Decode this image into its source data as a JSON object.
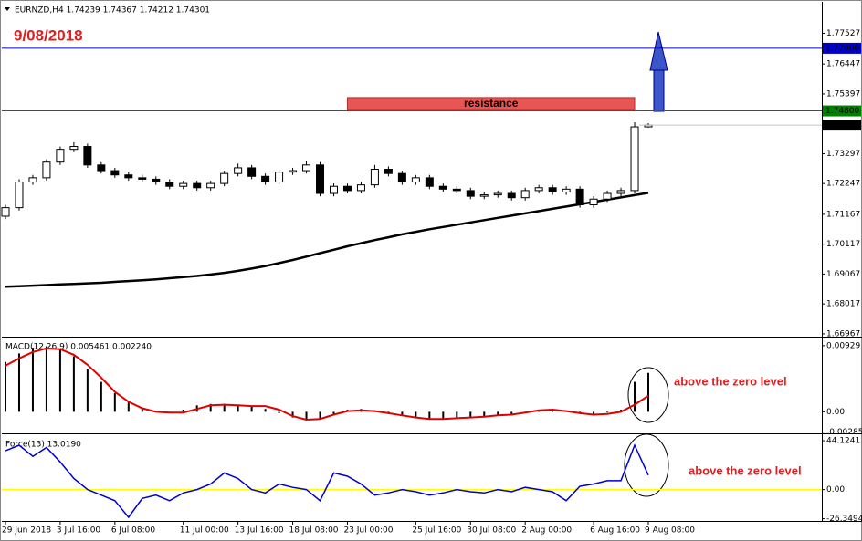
{
  "chart_data": [
    {
      "type": "candlestick",
      "title": "EURNZD,H4  1.74239 1.74367 1.74212 1.74301",
      "annotation": "9/08/2018",
      "categories": [
        "29 Jun 2018",
        null,
        null,
        null,
        "3 Jul 16:00",
        null,
        null,
        null,
        "6 Jul 08:00",
        null,
        null,
        null,
        null,
        "11 Jul 00:00",
        null,
        null,
        null,
        "13 Jul 16:00",
        null,
        null,
        null,
        "18 Jul 08:00",
        null,
        null,
        null,
        "23 Jul 00:00",
        null,
        null,
        null,
        null,
        "25 Jul 16:00",
        null,
        null,
        null,
        "30 Jul 08:00",
        null,
        null,
        null,
        "2 Aug 00:00",
        null,
        null,
        null,
        null,
        "6 Aug 16:00",
        null,
        null,
        null,
        "9 Aug 08:00"
      ],
      "open": [
        1.711,
        1.714,
        1.723,
        1.7245,
        1.73,
        1.7345,
        1.7355,
        1.729,
        1.727,
        1.7255,
        1.7245,
        1.724,
        1.723,
        1.7215,
        1.7225,
        1.721,
        1.7225,
        1.726,
        1.728,
        1.725,
        1.723,
        1.7265,
        1.727,
        1.729,
        1.719,
        1.7215,
        1.72,
        1.722,
        1.7275,
        1.726,
        1.723,
        1.7245,
        1.7215,
        1.7205,
        1.72,
        1.718,
        1.7185,
        1.719,
        1.7175,
        1.72,
        1.721,
        1.7195,
        1.7205,
        1.715,
        1.717,
        1.719,
        1.72,
        1.74239
      ],
      "high": [
        1.715,
        1.724,
        1.7255,
        1.731,
        1.7355,
        1.737,
        1.7365,
        1.73,
        1.728,
        1.7265,
        1.7255,
        1.725,
        1.724,
        1.7235,
        1.7235,
        1.7235,
        1.727,
        1.7295,
        1.729,
        1.726,
        1.7275,
        1.728,
        1.7305,
        1.73,
        1.7225,
        1.7225,
        1.723,
        1.729,
        1.7285,
        1.727,
        1.7255,
        1.7255,
        1.7225,
        1.7215,
        1.721,
        1.7195,
        1.72,
        1.72,
        1.721,
        1.722,
        1.722,
        1.7215,
        1.7215,
        1.718,
        1.72,
        1.721,
        1.744,
        1.74367
      ],
      "low": [
        1.71,
        1.713,
        1.722,
        1.7235,
        1.729,
        1.7335,
        1.728,
        1.726,
        1.7245,
        1.7235,
        1.723,
        1.722,
        1.7205,
        1.7205,
        1.72,
        1.72,
        1.7215,
        1.725,
        1.724,
        1.722,
        1.722,
        1.7255,
        1.726,
        1.718,
        1.718,
        1.719,
        1.719,
        1.721,
        1.725,
        1.722,
        1.722,
        1.7205,
        1.7195,
        1.719,
        1.717,
        1.717,
        1.7175,
        1.7165,
        1.7165,
        1.719,
        1.7185,
        1.7185,
        1.714,
        1.714,
        1.716,
        1.718,
        1.719,
        1.74212
      ],
      "close": [
        1.714,
        1.723,
        1.7245,
        1.73,
        1.7345,
        1.7355,
        1.729,
        1.727,
        1.7255,
        1.7245,
        1.724,
        1.723,
        1.7215,
        1.7225,
        1.721,
        1.7225,
        1.726,
        1.728,
        1.725,
        1.723,
        1.7265,
        1.727,
        1.729,
        1.719,
        1.7215,
        1.72,
        1.722,
        1.7275,
        1.726,
        1.723,
        1.7245,
        1.7215,
        1.7205,
        1.72,
        1.718,
        1.7185,
        1.719,
        1.7175,
        1.72,
        1.721,
        1.7195,
        1.7205,
        1.715,
        1.717,
        1.719,
        1.72,
        1.74239,
        1.74301
      ],
      "up_color": "#ffffff",
      "down_color": "#000000",
      "lines": [
        {
          "color": "#ffffff",
          "values": [
            1.71,
            1.713,
            1.717,
            1.721,
            1.725,
            1.7285,
            1.73,
            1.7295,
            1.7285,
            1.727,
            1.726,
            1.725,
            1.724,
            1.7232,
            1.7225,
            1.7222,
            1.723,
            1.7245,
            1.7252,
            1.7248,
            1.725,
            1.7255,
            1.7265,
            1.724,
            1.723,
            1.722,
            1.7218,
            1.7235,
            1.7245,
            1.724,
            1.7238,
            1.723,
            1.722,
            1.7212,
            1.72,
            1.7192,
            1.719,
            1.7185,
            1.7188,
            1.7195,
            1.7198,
            1.72,
            1.7185,
            1.718,
            1.7182,
            1.7188,
            1.72,
            1.7205
          ]
        },
        {
          "color": "#000000",
          "values": [
            1.6862,
            1.6864,
            1.6866,
            1.6868,
            1.687,
            1.6872,
            1.6874,
            1.6876,
            1.6879,
            1.6882,
            1.6885,
            1.6888,
            1.6892,
            1.6896,
            1.69,
            1.6905,
            1.6911,
            1.6918,
            1.6926,
            1.6935,
            1.6945,
            1.6956,
            1.6968,
            1.698,
            1.6992,
            1.7004,
            1.7015,
            1.7026,
            1.7036,
            1.7046,
            1.7055,
            1.7064,
            1.7072,
            1.708,
            1.7088,
            1.7096,
            1.7104,
            1.7112,
            1.712,
            1.7128,
            1.7136,
            1.7144,
            1.7152,
            1.716,
            1.7168,
            1.7176,
            1.7184,
            1.7192
          ]
        }
      ],
      "ylim": [
        1.669,
        1.786
      ],
      "yticks": [
        1.66967,
        1.68017,
        1.69067,
        1.70117,
        1.71167,
        1.72247,
        1.73297,
        1.74301,
        1.75397,
        1.76447,
        1.77527
      ],
      "hlines": [
        {
          "value": 1.77,
          "label": "1.77000",
          "color": "#0000cc"
        },
        {
          "value": 1.748,
          "label": "1.74800",
          "color": "#008000"
        }
      ],
      "zone": {
        "label": "resistance",
        "from": 1.7482,
        "to": 1.7527,
        "start": 25,
        "end": 46,
        "color": "#e85555"
      }
    },
    {
      "type": "macd",
      "title": "MACD(12,26,9) 0.005461 0.002240",
      "annotation": "above the zero level",
      "histogram": [
        0.007,
        0.0082,
        0.009,
        0.0092,
        0.0088,
        0.0078,
        0.006,
        0.0042,
        0.0026,
        0.0014,
        0.0006,
        0.0001,
        -0.0002,
        0.0003,
        0.0009,
        0.0011,
        0.0011,
        0.001,
        0.0007,
        0.0004,
        -0.0002,
        -0.0008,
        -0.0012,
        -0.0011,
        -0.0004,
        0.0003,
        0.0004,
        0.0002,
        -0.0002,
        -0.0006,
        -0.0009,
        -0.0011,
        -0.0011,
        -0.001,
        -0.0009,
        -0.0007,
        -0.0005,
        -0.0003,
        0.0,
        0.0003,
        0.0004,
        0.0002,
        -0.0002,
        -0.0003,
        -0.0001,
        0.0003,
        0.0042,
        0.005461
      ],
      "signal": [
        0.0065,
        0.0075,
        0.0084,
        0.0089,
        0.0088,
        0.008,
        0.0066,
        0.0048,
        0.0028,
        0.0014,
        0.0005,
        0.0,
        -0.0001,
        -0.0001,
        0.0004,
        0.0009,
        0.001,
        0.0009,
        0.0008,
        0.0008,
        0.0003,
        -0.0006,
        -0.0011,
        -0.001,
        -0.0004,
        0.0001,
        0.0002,
        0.0001,
        -0.0002,
        -0.0005,
        -0.0008,
        -0.001,
        -0.001,
        -0.0009,
        -0.0008,
        -0.0007,
        -0.0005,
        -0.0004,
        -0.0001,
        0.0002,
        0.0003,
        0.0001,
        -0.0002,
        -0.0004,
        -0.0003,
        0.0,
        0.001,
        0.00224
      ],
      "histogram_color": "#000000",
      "signal_color": "#e00000",
      "ylim": [
        -0.0029,
        0.0103
      ],
      "yticks": [
        -0.002857,
        {
          "value": 0,
          "label": "0.00"
        },
        0.00929
      ]
    },
    {
      "type": "force",
      "title": "Force(13) 13.0190",
      "annotation": "above the zero level",
      "values": [
        35,
        40,
        30,
        38,
        25,
        10,
        0,
        -5,
        -10,
        -25,
        -8,
        -5,
        -10,
        -3,
        0,
        5,
        15,
        10,
        0,
        -3,
        5,
        2,
        0,
        -10,
        15,
        12,
        5,
        -5,
        -3,
        0,
        -2,
        -5,
        -3,
        0,
        -2,
        -3,
        0,
        -2,
        2,
        0,
        -2,
        -10,
        3,
        5,
        8,
        8,
        40,
        13.019
      ],
      "color": "#0000cc",
      "level": 0,
      "level_color": "#ffff00",
      "ylim": [
        -27.5,
        49.1
      ],
      "yticks": [
        -26.3494,
        {
          "value": 0,
          "label": "0.00"
        },
        44.1241
      ]
    }
  ]
}
